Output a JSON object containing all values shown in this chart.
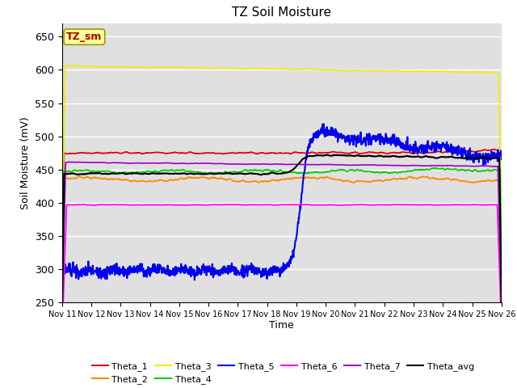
{
  "title": "TZ Soil Moisture",
  "xlabel": "Time",
  "ylabel": "Soil Moisture (mV)",
  "ylim": [
    250,
    670
  ],
  "yticks": [
    250,
    300,
    350,
    400,
    450,
    500,
    550,
    600,
    650
  ],
  "x_tick_labels": [
    "Nov 11",
    "Nov 12",
    "Nov 13",
    "Nov 14",
    "Nov 15",
    "Nov 16",
    "Nov 17",
    "Nov 18",
    "Nov 19",
    "Nov 20",
    "Nov 21",
    "Nov 22",
    "Nov 23",
    "Nov 24",
    "Nov 25",
    "Nov 26"
  ],
  "background_color": "#e0e0e0",
  "series": {
    "Theta_1": {
      "color": "#dd0000",
      "linewidth": 1.2
    },
    "Theta_2": {
      "color": "#ff8800",
      "linewidth": 1.2
    },
    "Theta_3": {
      "color": "#eeee00",
      "linewidth": 1.2
    },
    "Theta_4": {
      "color": "#00cc00",
      "linewidth": 1.2
    },
    "Theta_5": {
      "color": "#0000ee",
      "linewidth": 1.5
    },
    "Theta_6": {
      "color": "#ff00ff",
      "linewidth": 1.2
    },
    "Theta_7": {
      "color": "#9900cc",
      "linewidth": 1.2
    },
    "Theta_avg": {
      "color": "#000000",
      "linewidth": 1.5
    }
  },
  "legend_box_color": "#ffff99",
  "legend_box_text": "TZ_sm",
  "legend_box_text_color": "#aa0000"
}
